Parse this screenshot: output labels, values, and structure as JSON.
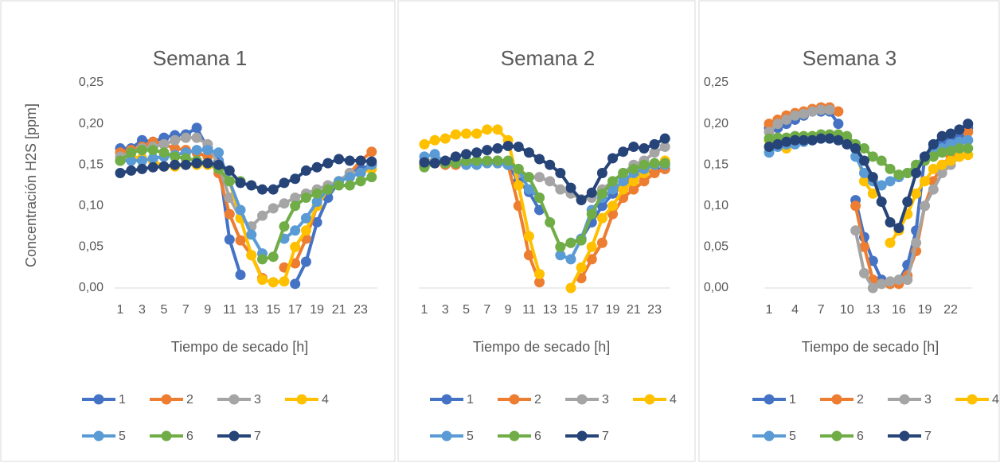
{
  "chart_data": [
    {
      "type": "line",
      "title": "Semana 1",
      "xlabel": "Tiempo de secado [h]",
      "ylabel": "Concentración H2S [ppm]",
      "categories": [
        "1",
        null,
        "3",
        null,
        "5",
        null,
        "7",
        null,
        "9",
        null,
        "11",
        null,
        "13",
        null,
        "15",
        null,
        "17",
        null,
        "19",
        null,
        "21",
        null,
        "23",
        null
      ],
      "ylim": [
        0,
        0.25
      ],
      "yticks": [
        {
          "value": 0,
          "label": "0,00"
        },
        {
          "value": 0.05,
          "label": "0,05"
        },
        {
          "value": 0.1,
          "label": "0,10"
        },
        {
          "value": 0.15,
          "label": "0,15"
        },
        {
          "value": 0.2,
          "label": "0,20"
        },
        {
          "value": 0.25,
          "label": "0,25"
        }
      ],
      "legend": "bottom",
      "series": [
        {
          "name": "1",
          "color": "#4472c4",
          "values": [
            0.17,
            0.17,
            0.18,
            0.178,
            0.183,
            0.186,
            0.187,
            0.195,
            0.17,
            0.155,
            0.059,
            0.016,
            null,
            null,
            null,
            null,
            0.005,
            0.032,
            0.08,
            0.11,
            0.13,
            0.14,
            0.145,
            0.15
          ]
        },
        {
          "name": "2",
          "color": "#ed7d31",
          "values": [
            0.165,
            0.168,
            0.172,
            0.178,
            0.175,
            0.17,
            0.168,
            0.165,
            0.16,
            0.14,
            0.09,
            0.058,
            0.04,
            0.012,
            null,
            0.025,
            0.03,
            0.06,
            0.1,
            0.12,
            0.13,
            0.14,
            0.155,
            0.166
          ]
        },
        {
          "name": "3",
          "color": "#a5a5a5",
          "values": [
            0.16,
            0.165,
            0.17,
            0.172,
            0.175,
            0.18,
            0.183,
            0.183,
            0.175,
            0.15,
            0.11,
            0.085,
            0.075,
            0.088,
            0.097,
            0.103,
            0.11,
            0.115,
            0.12,
            0.125,
            0.13,
            0.14,
            0.14,
            0.145
          ]
        },
        {
          "name": "4",
          "color": "#ffc000",
          "values": [
            0.155,
            0.16,
            0.158,
            0.155,
            0.148,
            0.148,
            0.15,
            0.15,
            0.15,
            0.145,
            0.13,
            0.085,
            0.04,
            0.01,
            0.007,
            0.008,
            0.05,
            0.07,
            0.1,
            0.12,
            0.13,
            0.135,
            0.14,
            0.145
          ]
        },
        {
          "name": "5",
          "color": "#5b9bd5",
          "values": [
            0.155,
            0.155,
            0.155,
            0.158,
            0.16,
            0.162,
            0.165,
            0.168,
            0.168,
            0.165,
            0.13,
            0.095,
            0.065,
            0.042,
            null,
            0.06,
            0.07,
            0.085,
            0.105,
            0.12,
            0.13,
            0.135,
            0.14,
            0.15
          ]
        },
        {
          "name": "6",
          "color": "#70ad47",
          "values": [
            0.155,
            0.165,
            0.168,
            0.168,
            0.165,
            0.16,
            0.158,
            0.155,
            0.152,
            0.145,
            0.13,
            0.13,
            null,
            0.035,
            0.038,
            0.075,
            0.1,
            0.11,
            0.115,
            0.12,
            0.125,
            0.125,
            0.13,
            0.135
          ]
        },
        {
          "name": "7",
          "color": "#264478",
          "values": [
            0.14,
            0.143,
            0.145,
            0.147,
            0.148,
            0.15,
            0.15,
            0.152,
            0.152,
            0.15,
            0.143,
            0.128,
            0.125,
            0.12,
            0.12,
            0.128,
            0.133,
            0.143,
            0.147,
            0.152,
            0.157,
            0.155,
            0.155,
            0.154
          ]
        }
      ]
    },
    {
      "type": "line",
      "title": "Semana 2",
      "xlabel": "Tiempo de secado [h]",
      "categories": [
        "1",
        null,
        "3",
        null,
        "5",
        null,
        "7",
        null,
        "9",
        null,
        "11",
        null,
        "13",
        null,
        "15",
        null,
        "17",
        null,
        "19",
        null,
        "21",
        null,
        "23",
        null
      ],
      "ylim": [
        0,
        0.25
      ],
      "legend": "bottom",
      "series": [
        {
          "name": "1",
          "color": "#4472c4",
          "values": [
            0.152,
            0.152,
            0.152,
            0.153,
            0.155,
            0.155,
            0.155,
            0.155,
            0.15,
            0.13,
            0.117,
            0.095,
            null,
            null,
            0.055,
            0.06,
            0.08,
            0.1,
            0.115,
            0.125,
            0.135,
            0.14,
            0.145,
            0.145
          ]
        },
        {
          "name": "2",
          "color": "#ed7d31",
          "values": [
            0.15,
            0.152,
            0.15,
            0.15,
            0.152,
            0.155,
            0.155,
            0.152,
            0.15,
            0.1,
            0.04,
            0.007,
            null,
            null,
            null,
            0.012,
            0.035,
            0.055,
            0.09,
            0.11,
            0.12,
            0.13,
            0.14,
            0.145
          ]
        },
        {
          "name": "3",
          "color": "#a5a5a5",
          "values": [
            0.155,
            0.155,
            0.152,
            0.155,
            0.155,
            0.155,
            0.155,
            0.155,
            0.15,
            0.14,
            0.135,
            0.135,
            0.13,
            0.12,
            0.115,
            0.108,
            0.11,
            0.12,
            0.13,
            0.14,
            0.15,
            0.155,
            0.165,
            0.172
          ]
        },
        {
          "name": "4",
          "color": "#ffc000",
          "values": [
            0.175,
            0.18,
            0.182,
            0.187,
            0.188,
            0.188,
            0.193,
            0.193,
            0.18,
            0.125,
            0.063,
            0.017,
            null,
            null,
            0.0,
            0.025,
            0.05,
            0.085,
            0.1,
            0.12,
            0.13,
            0.14,
            0.15,
            0.155
          ]
        },
        {
          "name": "5",
          "color": "#5b9bd5",
          "values": [
            0.16,
            0.163,
            0.152,
            0.152,
            0.15,
            0.15,
            0.152,
            0.152,
            0.15,
            0.145,
            0.12,
            0.11,
            null,
            0.04,
            0.035,
            0.06,
            0.095,
            0.11,
            0.12,
            0.13,
            0.14,
            0.145,
            0.15,
            0.15
          ]
        },
        {
          "name": "6",
          "color": "#70ad47",
          "values": [
            0.147,
            0.152,
            0.152,
            0.152,
            0.155,
            0.155,
            0.155,
            0.155,
            0.155,
            0.145,
            0.135,
            0.11,
            0.08,
            0.05,
            0.055,
            0.058,
            0.09,
            0.115,
            0.13,
            0.14,
            0.145,
            0.15,
            0.152,
            0.152
          ]
        },
        {
          "name": "7",
          "color": "#264478",
          "values": [
            0.153,
            0.152,
            0.155,
            0.16,
            0.163,
            0.165,
            0.168,
            0.17,
            0.173,
            0.172,
            0.165,
            0.157,
            0.15,
            0.14,
            0.122,
            0.107,
            0.116,
            0.14,
            0.158,
            0.166,
            0.172,
            0.17,
            0.175,
            0.182
          ]
        }
      ]
    },
    {
      "type": "line",
      "title": "Semana 3",
      "xlabel": "Tiempo de secado [h]",
      "categories": [
        "1",
        null,
        null,
        "4",
        null,
        null,
        "7",
        null,
        null,
        "10",
        null,
        null,
        "13",
        null,
        null,
        "16",
        null,
        null,
        "19",
        null,
        null,
        "22",
        null,
        null
      ],
      "ylim": [
        0,
        0.25
      ],
      "yticks": [
        {
          "value": 0,
          "label": "0,00"
        },
        {
          "value": 0.05,
          "label": "0,05"
        },
        {
          "value": 0.1,
          "label": "0,10"
        },
        {
          "value": 0.15,
          "label": "0,15"
        },
        {
          "value": 0.2,
          "label": "0,20"
        },
        {
          "value": 0.25,
          "label": "0,25"
        }
      ],
      "legend": "bottom",
      "series": [
        {
          "name": "1",
          "color": "#4472c4",
          "values": [
            0.195,
            0.195,
            0.2,
            0.205,
            0.21,
            0.215,
            0.215,
            0.215,
            0.2,
            null,
            0.107,
            0.062,
            0.033,
            0.01,
            0.005,
            0.008,
            0.028,
            0.07,
            0.16,
            0.17,
            0.175,
            0.18,
            0.185,
            0.195
          ]
        },
        {
          "name": "2",
          "color": "#ed7d31",
          "values": [
            0.2,
            0.205,
            0.21,
            0.213,
            0.215,
            0.218,
            0.22,
            0.22,
            0.215,
            null,
            0.1,
            0.05,
            0.01,
            0.005,
            0.005,
            0.005,
            0.015,
            0.045,
            0.1,
            0.13,
            0.15,
            0.16,
            0.17,
            0.19
          ]
        },
        {
          "name": "3",
          "color": "#a5a5a5",
          "values": [
            0.19,
            0.2,
            0.205,
            0.21,
            0.212,
            0.215,
            0.217,
            0.217,
            null,
            null,
            0.07,
            0.018,
            0.0,
            0.005,
            0.008,
            0.01,
            0.01,
            0.055,
            0.1,
            0.12,
            0.14,
            0.15,
            0.16,
            0.18
          ]
        },
        {
          "name": "4",
          "color": "#ffc000",
          "values": [
            0.18,
            0.175,
            0.17,
            0.178,
            0.182,
            0.185,
            0.185,
            0.185,
            0.183,
            0.18,
            0.17,
            0.13,
            0.115,
            null,
            0.055,
            0.07,
            0.09,
            0.115,
            0.13,
            0.145,
            0.15,
            0.155,
            0.16,
            0.162
          ]
        },
        {
          "name": "5",
          "color": "#5b9bd5",
          "values": [
            0.165,
            0.172,
            0.175,
            0.175,
            0.178,
            0.18,
            0.182,
            0.182,
            0.183,
            0.18,
            0.16,
            0.14,
            0.13,
            0.125,
            0.13,
            0.135,
            0.14,
            0.15,
            0.16,
            0.165,
            0.17,
            0.175,
            0.178,
            0.18
          ]
        },
        {
          "name": "6",
          "color": "#70ad47",
          "values": [
            0.182,
            0.183,
            0.183,
            0.185,
            0.185,
            0.185,
            0.187,
            0.187,
            0.187,
            0.185,
            0.175,
            0.17,
            0.16,
            0.155,
            0.145,
            0.138,
            0.14,
            0.15,
            0.155,
            0.16,
            0.165,
            0.167,
            0.17,
            0.17
          ]
        },
        {
          "name": "7",
          "color": "#264478",
          "values": [
            0.172,
            0.175,
            0.178,
            0.18,
            0.18,
            0.18,
            0.182,
            0.182,
            0.18,
            0.175,
            0.17,
            0.155,
            0.135,
            0.105,
            0.08,
            0.073,
            0.105,
            0.14,
            0.16,
            0.175,
            0.185,
            0.188,
            0.193,
            0.2
          ]
        }
      ]
    }
  ]
}
